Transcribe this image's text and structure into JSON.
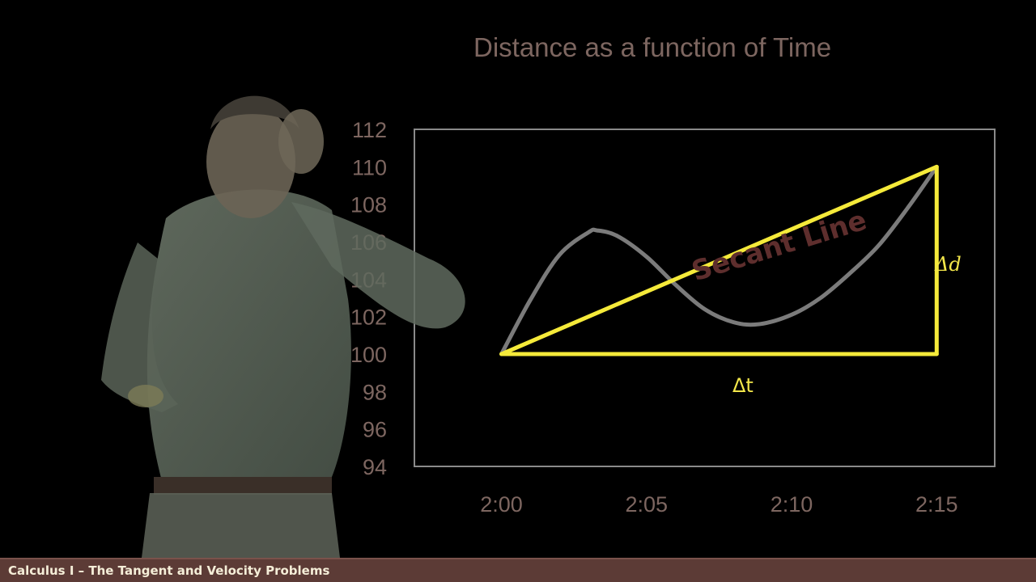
{
  "chart_data": {
    "type": "line",
    "title": "Distance as a function of Time",
    "xlabel": "",
    "ylabel": "",
    "x_ticks": [
      "2:00",
      "2:05",
      "2:10",
      "2:15"
    ],
    "y_ticks": [
      94,
      96,
      98,
      100,
      102,
      104,
      106,
      108,
      110,
      112
    ],
    "ylim": [
      94,
      112
    ],
    "xlim_minutes": [
      -3,
      17
    ],
    "grid": false,
    "series": [
      {
        "color": "#7b7b7b",
        "x": [
          0,
          1,
          2,
          3,
          3.3,
          4,
          5,
          6,
          7,
          8,
          8.9,
          10,
          11,
          12,
          13,
          14,
          15
        ],
        "y": [
          100,
          102.9,
          105.3,
          106.5,
          106.6,
          106.3,
          105.2,
          103.7,
          102.4,
          101.7,
          101.6,
          102.1,
          103.0,
          104.3,
          105.8,
          107.8,
          110
        ]
      }
    ],
    "secant_line": {
      "color": "#f5ea3a",
      "from": {
        "x": 0,
        "y": 100
      },
      "to": {
        "x": 15,
        "y": 110
      }
    },
    "delta_t_segment": {
      "color": "#f5ea3a",
      "from": {
        "x": 0,
        "y": 100
      },
      "to": {
        "x": 15,
        "y": 100
      }
    },
    "delta_d_segment": {
      "color": "#f5ea3a",
      "from": {
        "x": 15,
        "y": 100
      },
      "to": {
        "x": 15,
        "y": 110
      }
    },
    "annotations": {
      "secant_label": "Secant Line",
      "delta_d": "Δd",
      "delta_t": "Δt"
    }
  },
  "footer": {
    "title": "Calculus I – The Tangent and Velocity Problems"
  },
  "colors": {
    "background": "#000000",
    "axis_text": "#7d6660",
    "plot_frame": "#8a8a8a",
    "curve": "#7b7b7b",
    "accent": "#f5ea3a",
    "footer_bar": "#5c3b36",
    "footer_text": "#f5eed8",
    "secant_label": "#5e2e2d"
  }
}
